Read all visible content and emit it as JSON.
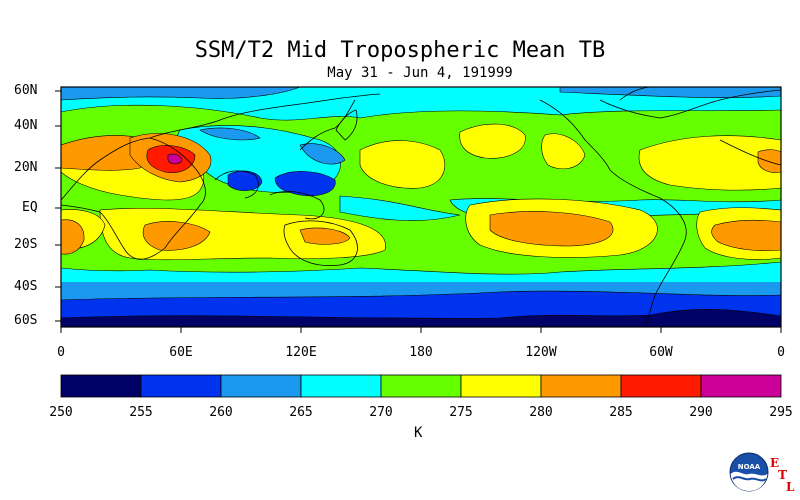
{
  "title": "SSM/T2 Mid Tropospheric Mean TB",
  "subtitle": "May 31 - Jun 4, 191999",
  "lat_ticks": [
    "60N",
    "40N",
    "20N",
    "EQ",
    "20S",
    "40S",
    "60S"
  ],
  "lon_ticks": [
    "0",
    "60E",
    "120E",
    "180",
    "120W",
    "60W",
    "0"
  ],
  "colorbar": {
    "levels": [
      "250",
      "255",
      "260",
      "265",
      "270",
      "275",
      "280",
      "285",
      "290",
      "295"
    ],
    "colors": [
      "#000066",
      "#0033ee",
      "#1a99ee",
      "#00ffff",
      "#66ff00",
      "#ffff00",
      "#ff9900",
      "#ff1a00",
      "#cc0099"
    ],
    "units": "K"
  },
  "logo": {
    "text": "NOAA",
    "letters": [
      "E",
      "T",
      "L"
    ]
  }
}
